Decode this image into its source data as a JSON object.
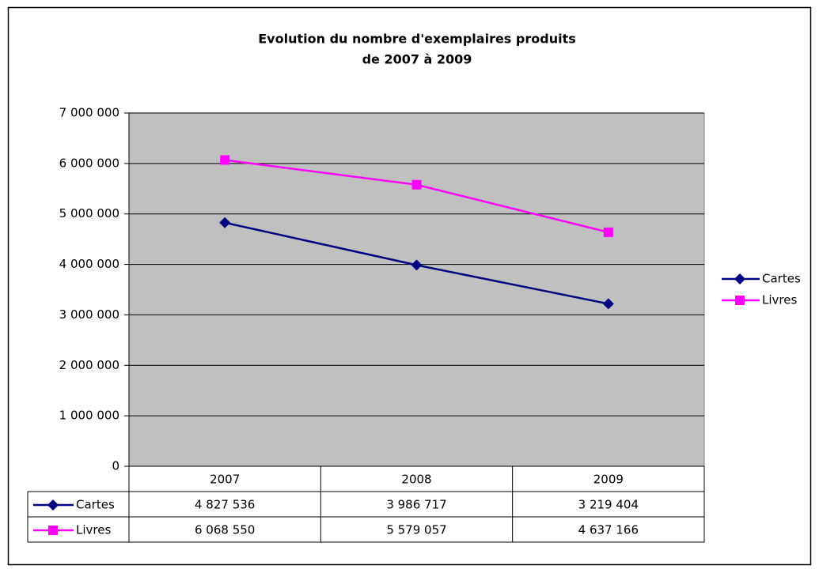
{
  "chart_data": {
    "type": "line",
    "title": [
      "Evolution du nombre d'exemplaires produits",
      "de 2007 à 2009"
    ],
    "categories": [
      "2007",
      "2008",
      "2009"
    ],
    "series": [
      {
        "name": "Cartes",
        "color": "#000080",
        "marker": "diamond",
        "values": [
          4827536,
          3986717,
          3219404
        ],
        "value_labels": [
          "4 827 536",
          "3 986 717",
          "3 219 404"
        ]
      },
      {
        "name": "Livres",
        "color": "#ff00ff",
        "marker": "square",
        "values": [
          6068550,
          5579057,
          4637166
        ],
        "value_labels": [
          "6 068 550",
          "5 579 057",
          "4 637 166"
        ]
      }
    ],
    "ylim": [
      0,
      7000000
    ],
    "yticks": [
      0,
      {
        "value": 1000000,
        "label": "1 000 000"
      },
      {
        "value": 2000000,
        "label": "2 000 000"
      },
      {
        "value": 3000000,
        "label": "3 000 000"
      },
      {
        "value": 4000000,
        "label": "4 000 000"
      },
      {
        "value": 5000000,
        "label": "5 000 000"
      },
      {
        "value": 6000000,
        "label": "6 000 000"
      },
      {
        "value": 7000000,
        "label": "7 000 000"
      }
    ],
    "grid": true,
    "legend": "right",
    "data_table": true
  }
}
